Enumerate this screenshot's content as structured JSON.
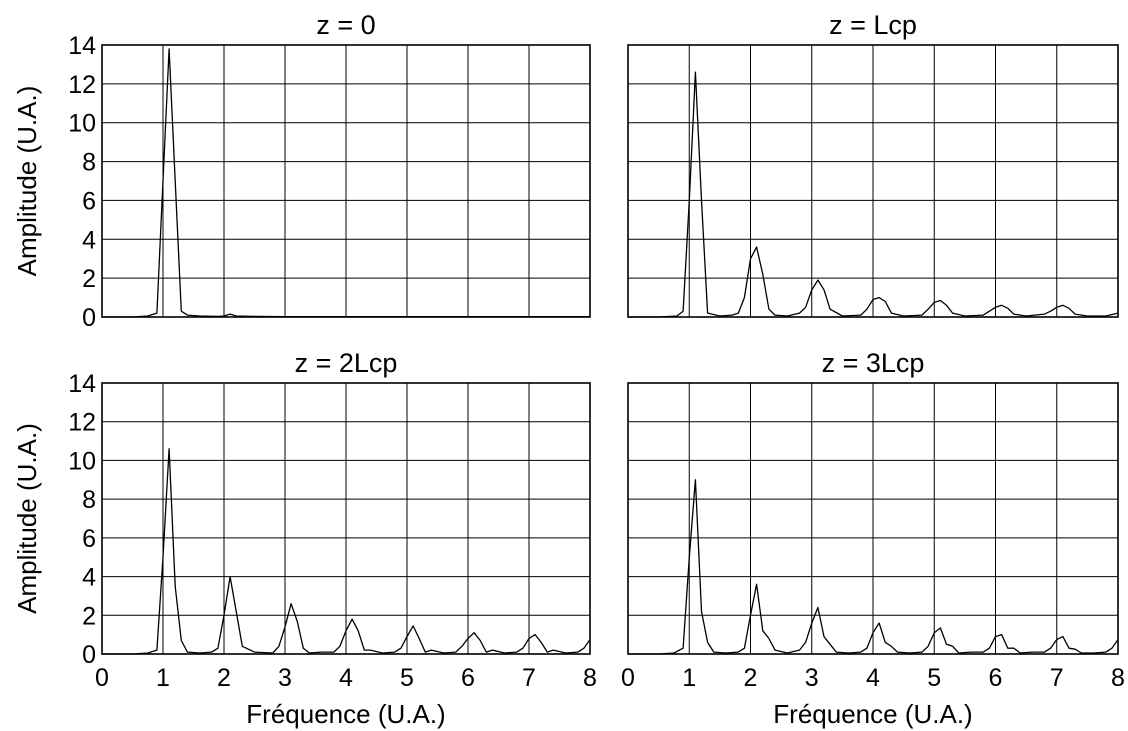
{
  "colors": {
    "line": "#000000",
    "grid": "#000000",
    "background": "#ffffff"
  },
  "chart_data": [
    {
      "type": "line",
      "title": "z = 0",
      "xlabel": "",
      "ylabel": "Amplitude (U.A.)",
      "xlim": [
        0,
        8
      ],
      "ylim": [
        0,
        14
      ],
      "xticks": [
        "0",
        "1",
        "2",
        "3",
        "4",
        "5",
        "6",
        "7",
        "8"
      ],
      "yticks": [
        "0",
        "2",
        "4",
        "6",
        "8",
        "10",
        "12",
        "14"
      ],
      "show_xticks": false,
      "show_yticks": true,
      "grid": true,
      "series": [
        {
          "x": [
            0,
            0.5,
            0.75,
            0.9,
            1.0,
            1.1,
            1.2,
            1.3,
            1.4,
            1.6,
            1.9,
            2.0,
            2.1,
            2.2,
            2.5,
            3,
            4,
            5,
            6,
            7,
            8
          ],
          "y": [
            0,
            0,
            0.05,
            0.2,
            7.0,
            13.8,
            7.0,
            0.3,
            0.1,
            0.05,
            0.03,
            0.05,
            0.15,
            0.05,
            0.03,
            0.02,
            0.02,
            0.02,
            0.02,
            0.02,
            0.02
          ]
        }
      ]
    },
    {
      "type": "line",
      "title": "z = Lcp",
      "xlabel": "",
      "ylabel": "",
      "xlim": [
        0,
        8
      ],
      "ylim": [
        0,
        14
      ],
      "xticks": [
        "0",
        "1",
        "2",
        "3",
        "4",
        "5",
        "6",
        "7",
        "8"
      ],
      "yticks": [
        "0",
        "2",
        "4",
        "6",
        "8",
        "10",
        "12",
        "14"
      ],
      "show_xticks": false,
      "show_yticks": false,
      "grid": true,
      "series": [
        {
          "x": [
            0,
            0.5,
            0.8,
            0.9,
            1.0,
            1.1,
            1.2,
            1.3,
            1.5,
            1.7,
            1.8,
            1.9,
            2.0,
            2.1,
            2.2,
            2.3,
            2.4,
            2.6,
            2.8,
            2.9,
            3.0,
            3.1,
            3.2,
            3.3,
            3.5,
            3.8,
            3.9,
            4.0,
            4.1,
            4.2,
            4.3,
            4.5,
            4.8,
            4.9,
            5.0,
            5.1,
            5.2,
            5.3,
            5.5,
            5.8,
            5.9,
            6.0,
            6.1,
            6.2,
            6.3,
            6.5,
            6.8,
            6.9,
            7.0,
            7.1,
            7.2,
            7.3,
            7.5,
            7.8,
            8.0
          ],
          "y": [
            0,
            0,
            0.05,
            0.3,
            6.0,
            12.6,
            6.0,
            0.2,
            0.05,
            0.1,
            0.2,
            1.0,
            3.0,
            3.6,
            2.2,
            0.4,
            0.1,
            0.05,
            0.2,
            0.5,
            1.4,
            1.9,
            1.4,
            0.4,
            0.05,
            0.1,
            0.4,
            0.9,
            1.0,
            0.8,
            0.2,
            0.05,
            0.1,
            0.4,
            0.75,
            0.85,
            0.6,
            0.2,
            0.05,
            0.1,
            0.3,
            0.5,
            0.6,
            0.45,
            0.15,
            0.05,
            0.15,
            0.3,
            0.5,
            0.6,
            0.45,
            0.15,
            0.05,
            0.05,
            0.2
          ]
        }
      ]
    },
    {
      "type": "line",
      "title": "z = 2Lcp",
      "xlabel": "Fréquence (U.A.)",
      "ylabel": "Amplitude (U.A.)",
      "xlim": [
        0,
        8
      ],
      "ylim": [
        0,
        14
      ],
      "xticks": [
        "0",
        "1",
        "2",
        "3",
        "4",
        "5",
        "6",
        "7",
        "8"
      ],
      "yticks": [
        "0",
        "2",
        "4",
        "6",
        "8",
        "10",
        "12",
        "14"
      ],
      "show_xticks": true,
      "show_yticks": true,
      "grid": true,
      "series": [
        {
          "x": [
            0,
            0.5,
            0.75,
            0.9,
            1.0,
            1.1,
            1.2,
            1.3,
            1.4,
            1.6,
            1.8,
            1.9,
            2.0,
            2.1,
            2.2,
            2.3,
            2.5,
            2.8,
            2.9,
            3.0,
            3.1,
            3.2,
            3.3,
            3.4,
            3.6,
            3.8,
            3.9,
            4.0,
            4.1,
            4.2,
            4.3,
            4.4,
            4.6,
            4.8,
            4.9,
            5.0,
            5.1,
            5.2,
            5.3,
            5.4,
            5.6,
            5.8,
            5.9,
            6.0,
            6.1,
            6.2,
            6.3,
            6.4,
            6.6,
            6.8,
            6.9,
            7.0,
            7.1,
            7.2,
            7.3,
            7.4,
            7.6,
            7.8,
            7.9,
            8.0
          ],
          "y": [
            0,
            0,
            0.05,
            0.2,
            5.0,
            10.6,
            3.5,
            0.7,
            0.1,
            0.05,
            0.1,
            0.3,
            2.0,
            4.0,
            2.2,
            0.4,
            0.1,
            0.05,
            0.4,
            1.4,
            2.6,
            1.7,
            0.3,
            0.05,
            0.1,
            0.1,
            0.4,
            1.2,
            1.8,
            1.2,
            0.2,
            0.2,
            0.05,
            0.1,
            0.3,
            0.9,
            1.45,
            0.8,
            0.1,
            0.2,
            0.05,
            0.1,
            0.4,
            0.8,
            1.1,
            0.7,
            0.1,
            0.2,
            0.05,
            0.1,
            0.3,
            0.8,
            1.0,
            0.6,
            0.1,
            0.2,
            0.05,
            0.1,
            0.3,
            0.75
          ]
        }
      ]
    },
    {
      "type": "line",
      "title": "z = 3Lcp",
      "xlabel": "Fréquence (U.A.)",
      "ylabel": "",
      "xlim": [
        0,
        8
      ],
      "ylim": [
        0,
        14
      ],
      "xticks": [
        "0",
        "1",
        "2",
        "3",
        "4",
        "5",
        "6",
        "7",
        "8"
      ],
      "yticks": [
        "0",
        "2",
        "4",
        "6",
        "8",
        "10",
        "12",
        "14"
      ],
      "show_xticks": true,
      "show_yticks": false,
      "grid": true,
      "series": [
        {
          "x": [
            0,
            0.5,
            0.75,
            0.9,
            1.0,
            1.1,
            1.2,
            1.3,
            1.4,
            1.6,
            1.8,
            1.9,
            2.0,
            2.1,
            2.2,
            2.3,
            2.4,
            2.6,
            2.8,
            2.9,
            3.0,
            3.1,
            3.2,
            3.3,
            3.4,
            3.6,
            3.8,
            3.9,
            4.0,
            4.1,
            4.2,
            4.3,
            4.4,
            4.6,
            4.8,
            4.9,
            5.0,
            5.1,
            5.2,
            5.3,
            5.4,
            5.6,
            5.8,
            5.9,
            6.0,
            6.1,
            6.2,
            6.3,
            6.4,
            6.6,
            6.8,
            6.9,
            7.0,
            7.1,
            7.2,
            7.3,
            7.4,
            7.6,
            7.8,
            7.9,
            8.0
          ],
          "y": [
            0,
            0,
            0.05,
            0.3,
            5.0,
            9.0,
            2.2,
            0.6,
            0.1,
            0.05,
            0.1,
            0.3,
            2.0,
            3.6,
            1.2,
            0.8,
            0.2,
            0.05,
            0.2,
            0.6,
            1.6,
            2.4,
            0.9,
            0.5,
            0.1,
            0.05,
            0.1,
            0.3,
            1.1,
            1.6,
            0.6,
            0.4,
            0.1,
            0.05,
            0.1,
            0.4,
            1.1,
            1.35,
            0.5,
            0.4,
            0.05,
            0.1,
            0.1,
            0.3,
            0.9,
            1.0,
            0.3,
            0.3,
            0.05,
            0.1,
            0.1,
            0.3,
            0.75,
            0.9,
            0.3,
            0.25,
            0.05,
            0.05,
            0.1,
            0.3,
            0.75
          ]
        }
      ]
    }
  ]
}
